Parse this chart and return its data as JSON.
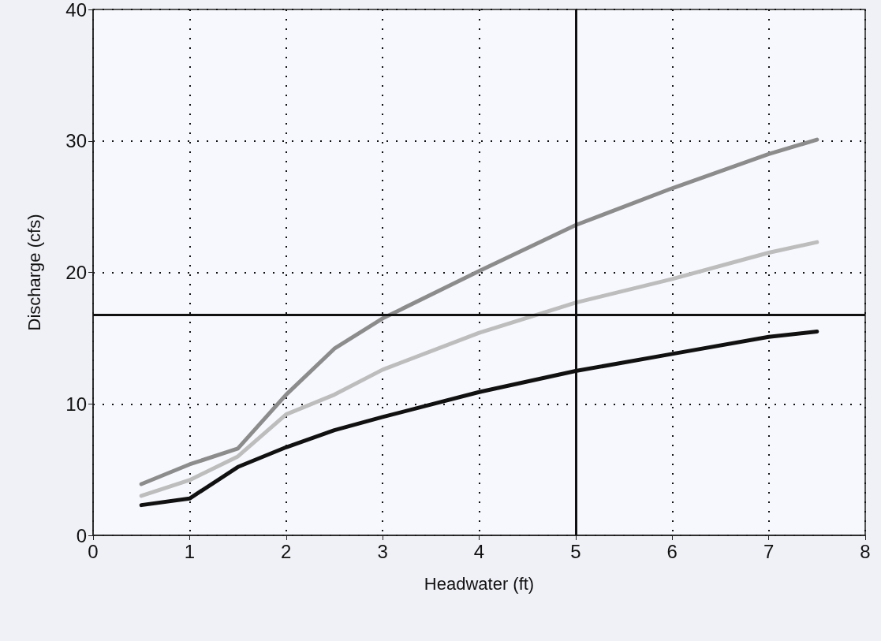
{
  "chart_data": {
    "type": "line",
    "xlabel": "Headwater (ft)",
    "ylabel": "Discharge (cfs)",
    "x": [
      0.5,
      1,
      1.5,
      2,
      2.5,
      3,
      4,
      5,
      6,
      7,
      7.5
    ],
    "series": [
      {
        "color": "#8c8c8c",
        "values": [
          3.9,
          5.4,
          6.6,
          10.7,
          14.2,
          16.5,
          20.1,
          23.6,
          26.4,
          29.0,
          30.1
        ]
      },
      {
        "color": "#bdbdbd",
        "values": [
          3.0,
          4.2,
          6.0,
          9.2,
          10.7,
          12.6,
          15.4,
          17.7,
          19.5,
          21.5,
          22.3
        ]
      },
      {
        "color": "#111111",
        "values": [
          2.3,
          2.8,
          5.2,
          6.7,
          8.0,
          9.0,
          10.9,
          12.5,
          13.8,
          15.1,
          15.5
        ]
      }
    ],
    "xlim": [
      0,
      8
    ],
    "xticks": [
      0,
      1,
      2,
      3,
      4,
      5,
      6,
      7,
      8
    ],
    "ylim": [
      0,
      40
    ],
    "yticks": [
      0,
      10,
      20,
      30,
      40
    ],
    "ref_lines": [
      {
        "axis": "x",
        "value": 5,
        "color": "#111111"
      },
      {
        "axis": "y",
        "value": 16.8,
        "color": "#111111"
      }
    ],
    "grid": true,
    "marker": "none",
    "line_style": "solid"
  }
}
